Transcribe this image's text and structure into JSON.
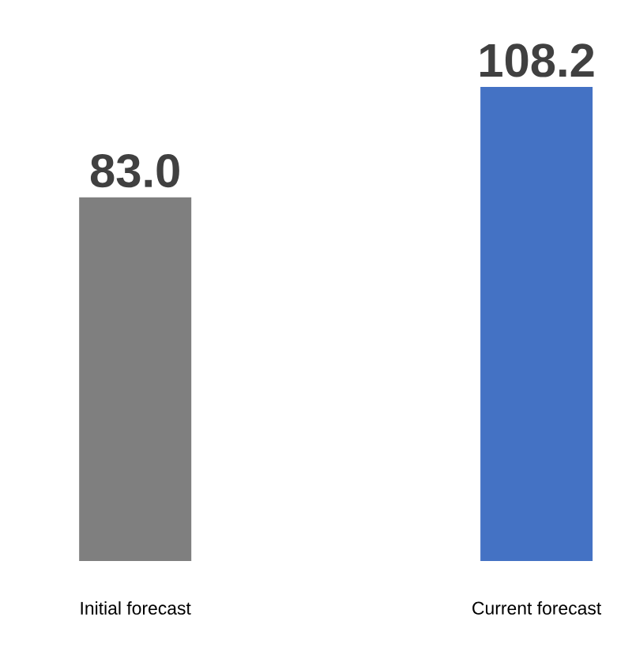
{
  "chart_data": {
    "type": "bar",
    "categories": [
      "Initial forecast",
      "Current forecast"
    ],
    "values": [
      83.0,
      108.2
    ],
    "value_labels": [
      "83.0",
      "108.2"
    ],
    "colors": [
      "#7f7f7f",
      "#4472c4"
    ]
  }
}
